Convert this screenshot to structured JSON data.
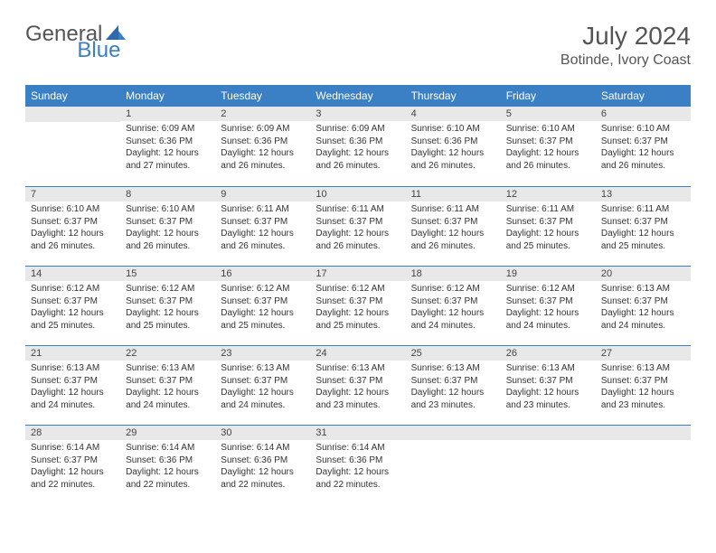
{
  "logo": {
    "part1": "General",
    "part2": "Blue"
  },
  "title": "July 2024",
  "location": "Botinde, Ivory Coast",
  "colors": {
    "header_bg": "#3b7fc4",
    "header_text": "#ffffff",
    "daynum_bg": "#e8e8e8",
    "divider": "#3b7fc4",
    "logo_blue": "#3b7fc4",
    "text": "#333333"
  },
  "weekdays": [
    "Sunday",
    "Monday",
    "Tuesday",
    "Wednesday",
    "Thursday",
    "Friday",
    "Saturday"
  ],
  "weeks": [
    [
      null,
      {
        "n": "1",
        "sr": "6:09 AM",
        "ss": "6:36 PM",
        "dl": "12 hours and 27 minutes."
      },
      {
        "n": "2",
        "sr": "6:09 AM",
        "ss": "6:36 PM",
        "dl": "12 hours and 26 minutes."
      },
      {
        "n": "3",
        "sr": "6:09 AM",
        "ss": "6:36 PM",
        "dl": "12 hours and 26 minutes."
      },
      {
        "n": "4",
        "sr": "6:10 AM",
        "ss": "6:36 PM",
        "dl": "12 hours and 26 minutes."
      },
      {
        "n": "5",
        "sr": "6:10 AM",
        "ss": "6:37 PM",
        "dl": "12 hours and 26 minutes."
      },
      {
        "n": "6",
        "sr": "6:10 AM",
        "ss": "6:37 PM",
        "dl": "12 hours and 26 minutes."
      }
    ],
    [
      {
        "n": "7",
        "sr": "6:10 AM",
        "ss": "6:37 PM",
        "dl": "12 hours and 26 minutes."
      },
      {
        "n": "8",
        "sr": "6:10 AM",
        "ss": "6:37 PM",
        "dl": "12 hours and 26 minutes."
      },
      {
        "n": "9",
        "sr": "6:11 AM",
        "ss": "6:37 PM",
        "dl": "12 hours and 26 minutes."
      },
      {
        "n": "10",
        "sr": "6:11 AM",
        "ss": "6:37 PM",
        "dl": "12 hours and 26 minutes."
      },
      {
        "n": "11",
        "sr": "6:11 AM",
        "ss": "6:37 PM",
        "dl": "12 hours and 26 minutes."
      },
      {
        "n": "12",
        "sr": "6:11 AM",
        "ss": "6:37 PM",
        "dl": "12 hours and 25 minutes."
      },
      {
        "n": "13",
        "sr": "6:11 AM",
        "ss": "6:37 PM",
        "dl": "12 hours and 25 minutes."
      }
    ],
    [
      {
        "n": "14",
        "sr": "6:12 AM",
        "ss": "6:37 PM",
        "dl": "12 hours and 25 minutes."
      },
      {
        "n": "15",
        "sr": "6:12 AM",
        "ss": "6:37 PM",
        "dl": "12 hours and 25 minutes."
      },
      {
        "n": "16",
        "sr": "6:12 AM",
        "ss": "6:37 PM",
        "dl": "12 hours and 25 minutes."
      },
      {
        "n": "17",
        "sr": "6:12 AM",
        "ss": "6:37 PM",
        "dl": "12 hours and 25 minutes."
      },
      {
        "n": "18",
        "sr": "6:12 AM",
        "ss": "6:37 PM",
        "dl": "12 hours and 24 minutes."
      },
      {
        "n": "19",
        "sr": "6:12 AM",
        "ss": "6:37 PM",
        "dl": "12 hours and 24 minutes."
      },
      {
        "n": "20",
        "sr": "6:13 AM",
        "ss": "6:37 PM",
        "dl": "12 hours and 24 minutes."
      }
    ],
    [
      {
        "n": "21",
        "sr": "6:13 AM",
        "ss": "6:37 PM",
        "dl": "12 hours and 24 minutes."
      },
      {
        "n": "22",
        "sr": "6:13 AM",
        "ss": "6:37 PM",
        "dl": "12 hours and 24 minutes."
      },
      {
        "n": "23",
        "sr": "6:13 AM",
        "ss": "6:37 PM",
        "dl": "12 hours and 24 minutes."
      },
      {
        "n": "24",
        "sr": "6:13 AM",
        "ss": "6:37 PM",
        "dl": "12 hours and 23 minutes."
      },
      {
        "n": "25",
        "sr": "6:13 AM",
        "ss": "6:37 PM",
        "dl": "12 hours and 23 minutes."
      },
      {
        "n": "26",
        "sr": "6:13 AM",
        "ss": "6:37 PM",
        "dl": "12 hours and 23 minutes."
      },
      {
        "n": "27",
        "sr": "6:13 AM",
        "ss": "6:37 PM",
        "dl": "12 hours and 23 minutes."
      }
    ],
    [
      {
        "n": "28",
        "sr": "6:14 AM",
        "ss": "6:37 PM",
        "dl": "12 hours and 22 minutes."
      },
      {
        "n": "29",
        "sr": "6:14 AM",
        "ss": "6:36 PM",
        "dl": "12 hours and 22 minutes."
      },
      {
        "n": "30",
        "sr": "6:14 AM",
        "ss": "6:36 PM",
        "dl": "12 hours and 22 minutes."
      },
      {
        "n": "31",
        "sr": "6:14 AM",
        "ss": "6:36 PM",
        "dl": "12 hours and 22 minutes."
      },
      null,
      null,
      null
    ]
  ],
  "labels": {
    "sunrise": "Sunrise:",
    "sunset": "Sunset:",
    "daylight": "Daylight:"
  }
}
